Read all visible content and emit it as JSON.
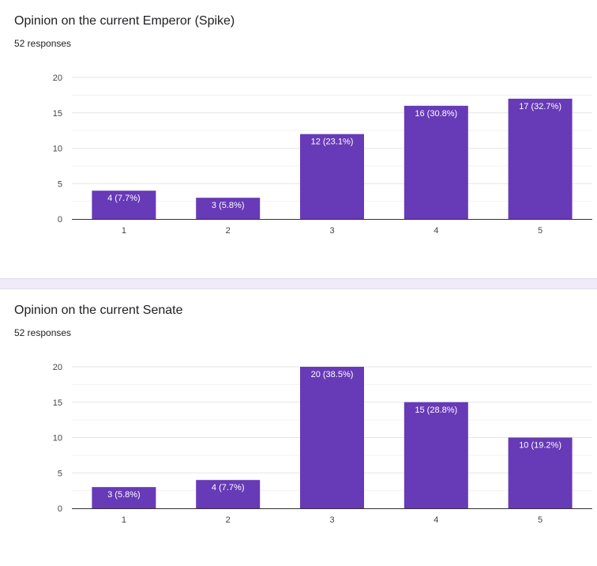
{
  "theme": {
    "bar_color": "#673ab7",
    "grid_color": "#eeeeee",
    "axis_color": "#333333",
    "divider_color": "#f0ebf8"
  },
  "chart_data": [
    {
      "type": "bar",
      "title": "Opinion on the current Emperor (Spike)",
      "subtitle": "52 responses",
      "categories": [
        "1",
        "2",
        "3",
        "4",
        "5"
      ],
      "values": [
        4,
        3,
        12,
        16,
        17
      ],
      "data_labels": [
        "4 (7.7%)",
        "3 (5.8%)",
        "12 (23.1%)",
        "16 (30.8%)",
        "17 (32.7%)"
      ],
      "yticks": [
        "0",
        "5",
        "10",
        "15",
        "20"
      ],
      "ylim": [
        0,
        20
      ],
      "grid": true,
      "legend": "none"
    },
    {
      "type": "bar",
      "title": "Opinion on the current Senate",
      "subtitle": "52 responses",
      "categories": [
        "1",
        "2",
        "3",
        "4",
        "5"
      ],
      "values": [
        3,
        4,
        20,
        15,
        10
      ],
      "data_labels": [
        "3 (5.8%)",
        "4 (7.7%)",
        "20 (38.5%)",
        "15 (28.8%)",
        "10 (19.2%)"
      ],
      "yticks": [
        "0",
        "5",
        "10",
        "15",
        "20"
      ],
      "ylim": [
        0,
        20
      ],
      "grid": true,
      "legend": "none"
    }
  ]
}
